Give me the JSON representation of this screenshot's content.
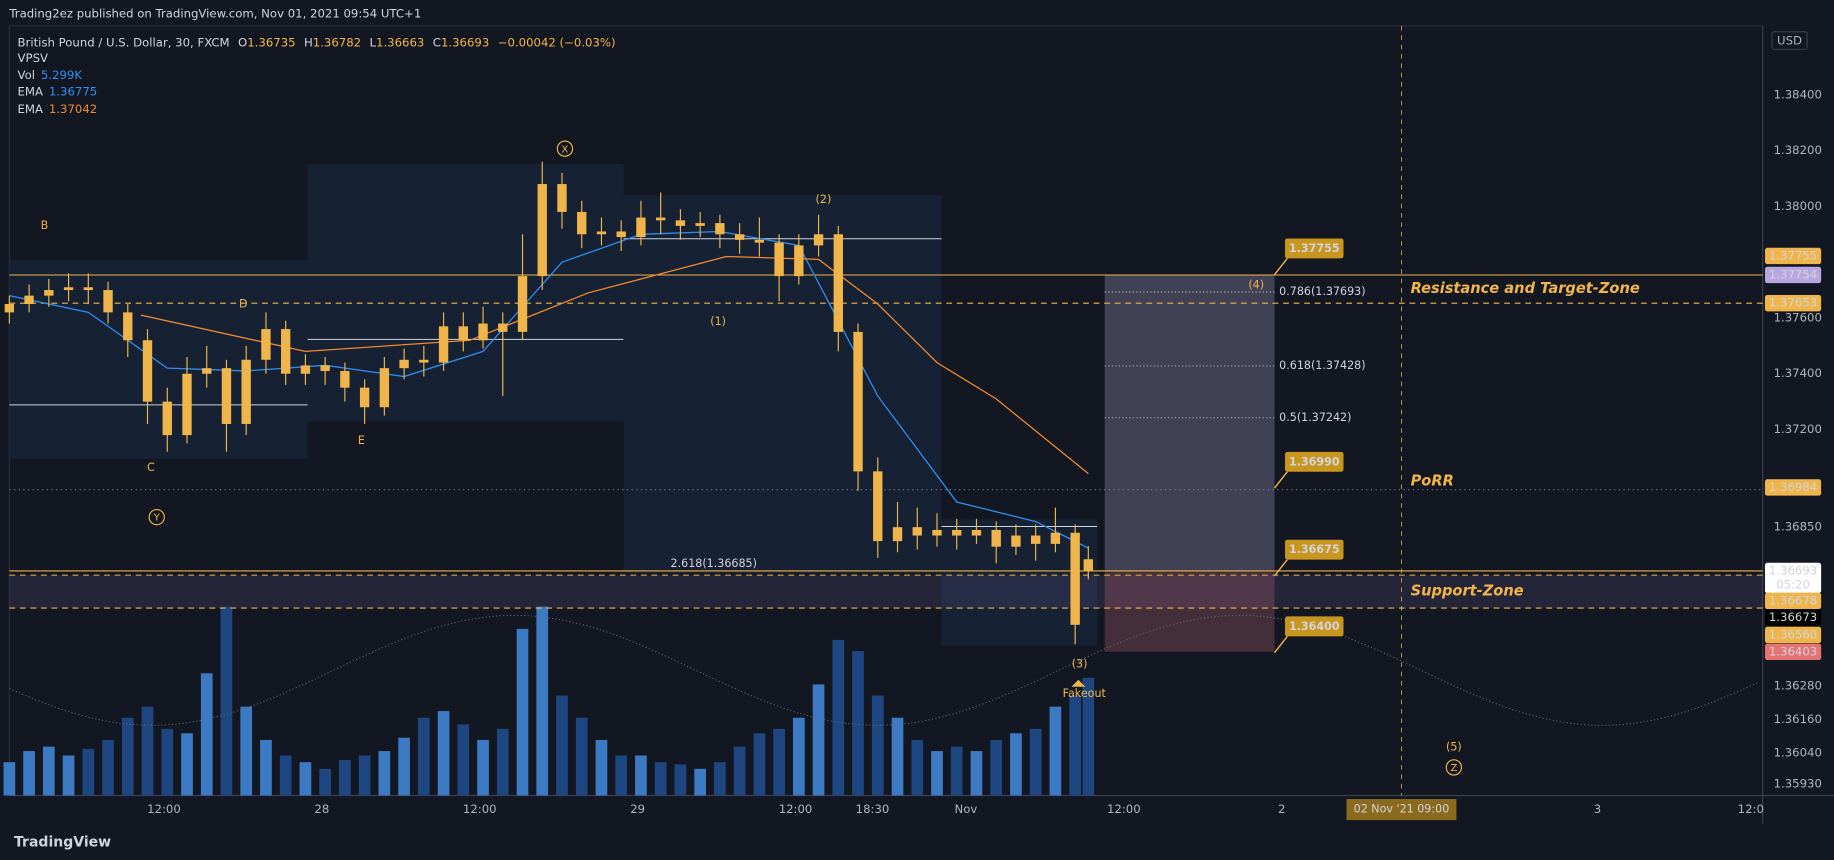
{
  "chart_data": {
    "type": "candlestick",
    "publisher": "Trading2ez published on TradingView.com, Nov 01, 2021 09:54 UTC+1",
    "title": "British Pound / U.S. Dollar, 30, FXCM",
    "ohlc_keys": [
      "O",
      "H",
      "L",
      "C"
    ],
    "change": "−0.00042 (−0.03%)",
    "indicator": "VPSV",
    "currency": "USD",
    "footer": "TradingView",
    "color": "#f0b54a",
    "grid": false,
    "xlim": [
      0,
      266.5
    ],
    "ylim": [
      1.35888,
      1.38647
    ],
    "yticks": [
      {
        "value": 1.384,
        "label": "1.38400"
      },
      {
        "value": 1.382,
        "label": "1.38200"
      },
      {
        "value": 1.38,
        "label": "1.38000"
      },
      {
        "value": 1.376,
        "label": "1.37600"
      },
      {
        "value": 1.374,
        "label": "1.37400"
      },
      {
        "value": 1.372,
        "label": "1.37200"
      },
      {
        "value": 1.3685,
        "label": "1.36850"
      },
      {
        "value": 1.3628,
        "label": "1.36280"
      },
      {
        "value": 1.3616,
        "label": "1.36160"
      },
      {
        "value": 1.3604,
        "label": "1.36040"
      },
      {
        "value": 1.3593,
        "label": "1.35930"
      }
    ],
    "xticks": [
      {
        "value": 23.5,
        "label": "12:00"
      },
      {
        "value": 47.5,
        "label": "28"
      },
      {
        "value": 71.5,
        "label": "12:00"
      },
      {
        "value": 95.5,
        "label": "29"
      },
      {
        "value": 119.5,
        "label": "12:00"
      },
      {
        "value": 131.2,
        "label": "18:30"
      },
      {
        "value": 145.4,
        "label": "Nov"
      },
      {
        "value": 169.4,
        "label": "12:00"
      },
      {
        "value": 193.4,
        "label": "2"
      },
      {
        "value": 241.4,
        "label": "3"
      },
      {
        "value": 264.7,
        "label": "12:0"
      }
    ],
    "crosshair": {
      "value": 211.6,
      "label": "02 Nov '21   09:00",
      "color": "#8a6a1c"
    },
    "candles": {
      "x": [
        0,
        3,
        6,
        9,
        12,
        15,
        18,
        21,
        24,
        27,
        30,
        33,
        36,
        39,
        42,
        45,
        48,
        51,
        54,
        57,
        60,
        63,
        66,
        69,
        72,
        75,
        78,
        81,
        84,
        87,
        90,
        93,
        96,
        99,
        102,
        105,
        108,
        111,
        114,
        117,
        120,
        123,
        126,
        129,
        132,
        135,
        138,
        141,
        144,
        147,
        150,
        153,
        156,
        159,
        162,
        164
      ],
      "open": [
        1.3762,
        1.3765,
        1.3768,
        1.377,
        1.3771,
        1.377,
        1.3762,
        1.3752,
        1.373,
        1.3718,
        1.374,
        1.3742,
        1.3722,
        1.3745,
        1.3756,
        1.374,
        1.3743,
        1.3741,
        1.3735,
        1.3728,
        1.3742,
        1.3745,
        1.3744,
        1.3757,
        1.3752,
        1.3758,
        1.3755,
        1.3775,
        1.3808,
        1.3798,
        1.379,
        1.3791,
        1.3789,
        1.3796,
        1.3795,
        1.3793,
        1.3794,
        1.379,
        1.3788,
        1.3787,
        1.3775,
        1.3786,
        1.379,
        1.3755,
        1.3705,
        1.368,
        1.3685,
        1.3682,
        1.3684,
        1.3682,
        1.3684,
        1.3678,
        1.3682,
        1.3679,
        1.3683,
        1.36735
      ],
      "high": [
        1.3768,
        1.3772,
        1.3774,
        1.3776,
        1.3776,
        1.3773,
        1.3765,
        1.3756,
        1.3735,
        1.3746,
        1.375,
        1.3745,
        1.375,
        1.3762,
        1.3759,
        1.3747,
        1.3746,
        1.3744,
        1.3738,
        1.3746,
        1.3749,
        1.375,
        1.3762,
        1.3762,
        1.3764,
        1.3762,
        1.379,
        1.3816,
        1.3812,
        1.3802,
        1.3796,
        1.3795,
        1.3802,
        1.3805,
        1.3799,
        1.3798,
        1.3797,
        1.3794,
        1.3796,
        1.379,
        1.379,
        1.3797,
        1.3793,
        1.3758,
        1.371,
        1.3694,
        1.3692,
        1.369,
        1.3688,
        1.3688,
        1.3687,
        1.3686,
        1.3686,
        1.3692,
        1.3686,
        1.36782
      ],
      "low": [
        1.3758,
        1.3762,
        1.3764,
        1.3766,
        1.3765,
        1.3758,
        1.3746,
        1.3722,
        1.3712,
        1.3715,
        1.3735,
        1.3712,
        1.3718,
        1.374,
        1.3736,
        1.3736,
        1.3736,
        1.373,
        1.3722,
        1.3725,
        1.3738,
        1.3739,
        1.3741,
        1.3748,
        1.3749,
        1.3732,
        1.3752,
        1.377,
        1.3792,
        1.3785,
        1.3786,
        1.3784,
        1.3786,
        1.379,
        1.3788,
        1.3789,
        1.3785,
        1.3783,
        1.3782,
        1.3766,
        1.3772,
        1.3782,
        1.3748,
        1.3698,
        1.3674,
        1.3676,
        1.3677,
        1.3678,
        1.3677,
        1.3679,
        1.3672,
        1.3675,
        1.3673,
        1.3676,
        1.3643,
        1.36663
      ],
      "close": [
        1.3765,
        1.3768,
        1.377,
        1.3771,
        1.377,
        1.3762,
        1.3752,
        1.373,
        1.3718,
        1.374,
        1.3742,
        1.3722,
        1.3745,
        1.3756,
        1.374,
        1.3743,
        1.3741,
        1.3735,
        1.3728,
        1.3742,
        1.3745,
        1.3744,
        1.3757,
        1.3752,
        1.3758,
        1.3755,
        1.3775,
        1.3808,
        1.3798,
        1.379,
        1.3791,
        1.3789,
        1.3796,
        1.3795,
        1.3793,
        1.3794,
        1.379,
        1.3788,
        1.3787,
        1.3775,
        1.3786,
        1.379,
        1.3755,
        1.3705,
        1.368,
        1.3685,
        1.3682,
        1.3684,
        1.3682,
        1.3684,
        1.3678,
        1.3682,
        1.3679,
        1.3683,
        1.365,
        1.36693
      ]
    },
    "volume": {
      "name": "Vol",
      "last_label": "5.299K",
      "colors": [
        "#3d7ac4",
        "#1e4680"
      ],
      "values": [
        1.5,
        2.0,
        2.2,
        1.8,
        2.1,
        2.5,
        3.5,
        4.0,
        3.0,
        2.8,
        5.5,
        8.5,
        4.0,
        2.5,
        1.8,
        1.5,
        1.2,
        1.6,
        1.8,
        2.0,
        2.6,
        3.5,
        3.8,
        3.2,
        2.5,
        3.0,
        7.5,
        8.5,
        4.5,
        3.5,
        2.5,
        1.8,
        1.8,
        1.5,
        1.4,
        1.2,
        1.5,
        2.2,
        2.8,
        3.0,
        3.5,
        5.0,
        7.0,
        6.5,
        4.5,
        3.5,
        2.5,
        2.0,
        2.2,
        2.0,
        2.5,
        2.8,
        3.0,
        4.0,
        4.5,
        5.299
      ]
    },
    "ema": [
      {
        "name": "EMA",
        "color": "#2e8ff0",
        "x": [
          0,
          12,
          24,
          36,
          48,
          60,
          72,
          84,
          96,
          108,
          120,
          132,
          144,
          156,
          164
        ],
        "values": [
          1.3768,
          1.3762,
          1.3742,
          1.3741,
          1.3743,
          1.3739,
          1.3748,
          1.378,
          1.379,
          1.3791,
          1.3786,
          1.3732,
          1.3694,
          1.3687,
          1.36775
        ]
      },
      {
        "name": "EMA",
        "color": "#f08a30",
        "x": [
          20,
          45,
          70,
          88,
          109,
          123,
          132,
          141,
          150,
          164
        ],
        "values": [
          1.3761,
          1.3748,
          1.3752,
          1.3769,
          1.3782,
          1.3781,
          1.3765,
          1.3744,
          1.3731,
          1.37042
        ]
      }
    ],
    "price_labels": [
      {
        "value": 1.37755,
        "label": "1.37755",
        "bg": "#f0b54a",
        "fg": "#131722",
        "line": "none"
      },
      {
        "value": 1.37754,
        "label": "1.37754",
        "bg": "#b7a6e0",
        "fg": "#131722",
        "line": "solid"
      },
      {
        "value": 1.37653,
        "label": "1.37653",
        "bg": "#f0b54a",
        "fg": "#131722",
        "line": "dashed"
      },
      {
        "value": 1.36984,
        "label": "1.36984",
        "bg": "#f0b54a",
        "fg": "#131722",
        "line": "dotted"
      },
      {
        "value": 1.36693,
        "label": "1.36693",
        "sub": "05:20",
        "bg": "#ffffff",
        "fg": "#131722",
        "line": "solid"
      },
      {
        "value": 1.36678,
        "label": "1.36678",
        "bg": "#f0b54a",
        "fg": "#131722",
        "line": "dashed"
      },
      {
        "value": 1.36673,
        "label": "1.36673",
        "bg": "#000000",
        "fg": "#ffffff",
        "line": "none"
      },
      {
        "value": 1.3656,
        "label": "1.36560",
        "bg": "#f0b54a",
        "fg": "#131722",
        "line": "dashed"
      },
      {
        "value": 1.36403,
        "label": "1.36403",
        "bg": "#e57373",
        "fg": "#131722",
        "line": "none"
      }
    ],
    "zones": [
      {
        "label": "Resistance and Target-Zone",
        "from": 1.37754,
        "to": 1.37653,
        "shade": false
      },
      {
        "label": "PoRR",
        "from": 1.36984,
        "to": 1.36984,
        "shade": false
      },
      {
        "label": "Support-Zone",
        "from": 1.36678,
        "to": 1.3656,
        "shade": true
      }
    ],
    "position": {
      "x": [
        166.5,
        192.3
      ],
      "target": 1.37755,
      "entry": 1.36693,
      "stop": 1.36403
    },
    "callouts": [
      {
        "value": 1.37755,
        "label": "1.37755"
      },
      {
        "value": 1.3699,
        "label": "1.36990"
      },
      {
        "value": 1.36675,
        "label": "1.36675"
      },
      {
        "value": 1.364,
        "label": "1.36400"
      }
    ],
    "fibs": [
      {
        "value": 1.37693,
        "label": "0.786(1.37693)"
      },
      {
        "value": 1.37428,
        "label": "0.618(1.37428)"
      },
      {
        "value": 1.37242,
        "label": "0.5(1.37242)"
      },
      {
        "value": 1.36685,
        "label": "2.618(1.36685)"
      }
    ],
    "annotations": [
      "B",
      "C",
      "D",
      "E",
      "(1)",
      "(2)",
      "(3)",
      "(4)",
      "(5)",
      "Fakeout"
    ],
    "circled": [
      "X",
      "Y",
      "Z"
    ]
  }
}
